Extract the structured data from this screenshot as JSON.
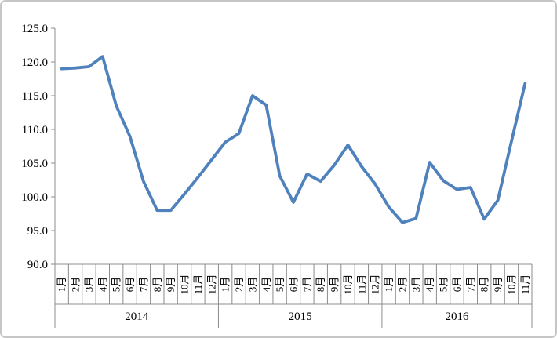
{
  "chart_data": {
    "type": "line",
    "title": "",
    "grid": false,
    "legend_position": "none",
    "line_color": "#4F81BD",
    "axis_color": "#8c8c8c",
    "ylim": [
      90,
      125
    ],
    "ytick_step": 5,
    "ytick_labels": [
      "90.0",
      "95.0",
      "100.0",
      "105.0",
      "110.0",
      "115.0",
      "120.0",
      "125.0"
    ],
    "categories": [
      "1月",
      "2月",
      "3月",
      "4月",
      "5月",
      "6月",
      "7月",
      "8月",
      "9月",
      "10月",
      "11月",
      "12月",
      "1月",
      "2月",
      "3月",
      "4月",
      "5月",
      "6月",
      "7月",
      "8月",
      "9月",
      "10月",
      "11月",
      "12月",
      "1月",
      "2月",
      "3月",
      "4月",
      "5月",
      "6月",
      "7月",
      "8月",
      "9月",
      "10月",
      "11月"
    ],
    "year_groups": [
      {
        "label": "2014",
        "months": 12
      },
      {
        "label": "2015",
        "months": 12
      },
      {
        "label": "2016",
        "months": 11
      }
    ],
    "series": [
      {
        "name": "",
        "values": [
          119.0,
          119.1,
          119.3,
          120.8,
          113.5,
          109.0,
          102.3,
          98.0,
          98.0,
          100.4,
          102.9,
          105.5,
          108.1,
          109.4,
          115.0,
          113.6,
          103.1,
          99.2,
          103.4,
          102.3,
          104.7,
          107.7,
          104.5,
          101.9,
          98.5,
          96.2,
          96.8,
          105.1,
          102.4,
          101.1,
          101.4,
          96.7,
          99.5,
          108.2,
          116.8
        ]
      }
    ]
  }
}
